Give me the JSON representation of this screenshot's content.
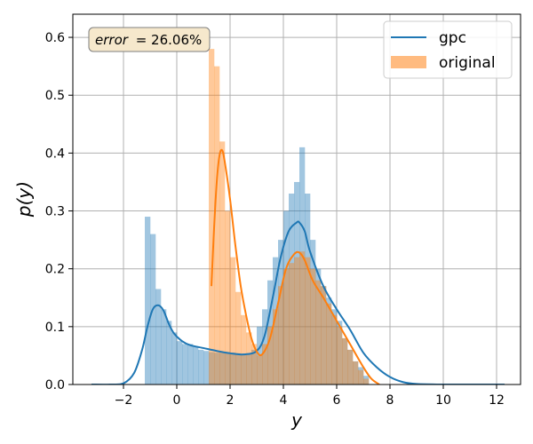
{
  "chart_data": {
    "type": "histogram",
    "xlabel": "y",
    "ylabel": "p(y)",
    "xlim": [
      -3.9,
      12.9
    ],
    "ylim": [
      0,
      0.64
    ],
    "xticks": [
      -2,
      0,
      2,
      4,
      6,
      8,
      10,
      12
    ],
    "xtick_labels": [
      "−2",
      "0",
      "2",
      "4",
      "6",
      "8",
      "10",
      "12"
    ],
    "yticks": [
      0.0,
      0.1,
      0.2,
      0.3,
      0.4,
      0.5,
      0.6
    ],
    "ytick_labels": [
      "0.0",
      "0.1",
      "0.2",
      "0.3",
      "0.4",
      "0.5",
      "0.6"
    ],
    "grid": true,
    "legend_position": "top-right",
    "annotation": {
      "prefix": "error",
      "value": "= 26.06%"
    },
    "series": [
      {
        "name": "gpc",
        "kind": "line+histogram",
        "color": "#1f77b4",
        "bin_width": 0.2,
        "hist_x": [
          -1.1,
          -0.9,
          -0.7,
          -0.5,
          -0.3,
          -0.1,
          0.1,
          0.3,
          0.5,
          0.7,
          0.9,
          1.1,
          1.3,
          1.5,
          1.7,
          1.9,
          2.1,
          2.3,
          2.5,
          2.7,
          2.9,
          3.1,
          3.3,
          3.5,
          3.7,
          3.9,
          4.1,
          4.3,
          4.5,
          4.7,
          4.9,
          5.1,
          5.3,
          5.5,
          5.7,
          5.9,
          6.1,
          6.3,
          6.5,
          6.7,
          6.9,
          7.1
        ],
        "hist_y": [
          0.29,
          0.26,
          0.165,
          0.13,
          0.11,
          0.09,
          0.075,
          0.07,
          0.07,
          0.065,
          0.06,
          0.058,
          0.056,
          0.055,
          0.055,
          0.056,
          0.055,
          0.054,
          0.053,
          0.052,
          0.06,
          0.1,
          0.13,
          0.18,
          0.22,
          0.25,
          0.3,
          0.33,
          0.35,
          0.41,
          0.33,
          0.25,
          0.2,
          0.17,
          0.15,
          0.13,
          0.11,
          0.08,
          0.06,
          0.04,
          0.03,
          0.015
        ],
        "curve_x": [
          -3.2,
          -2.5,
          -2.0,
          -1.6,
          -1.3,
          -1.1,
          -0.9,
          -0.7,
          -0.5,
          -0.3,
          -0.1,
          0.2,
          0.5,
          1.0,
          1.5,
          2.0,
          2.5,
          3.0,
          3.3,
          3.6,
          3.9,
          4.2,
          4.5,
          4.6,
          4.8,
          5.0,
          5.5,
          6.0,
          6.5,
          7.0,
          7.5,
          8.0,
          8.5,
          9.0,
          10.0,
          11.0,
          12.3
        ],
        "curve_y": [
          0.0,
          0.0,
          0.002,
          0.02,
          0.06,
          0.1,
          0.13,
          0.137,
          0.128,
          0.105,
          0.088,
          0.075,
          0.068,
          0.063,
          0.058,
          0.054,
          0.052,
          0.058,
          0.085,
          0.15,
          0.22,
          0.265,
          0.28,
          0.28,
          0.265,
          0.23,
          0.17,
          0.13,
          0.095,
          0.055,
          0.03,
          0.013,
          0.004,
          0.001,
          0.0,
          0.0,
          0.0
        ]
      },
      {
        "name": "original",
        "kind": "line+histogram",
        "color": "#ff7f0e",
        "hist_color": "#ffbb80",
        "bin_width": 0.2,
        "hist_x": [
          1.3,
          1.5,
          1.7,
          1.9,
          2.1,
          2.3,
          2.5,
          2.7,
          2.9,
          3.1,
          3.3,
          3.5,
          3.7,
          3.9,
          4.1,
          4.3,
          4.5,
          4.7,
          4.9,
          5.1,
          5.3,
          5.5,
          5.7,
          5.9,
          6.1,
          6.3,
          6.5,
          6.7,
          6.9,
          7.1
        ],
        "hist_y": [
          0.58,
          0.55,
          0.42,
          0.3,
          0.22,
          0.16,
          0.12,
          0.09,
          0.07,
          0.05,
          0.07,
          0.1,
          0.13,
          0.17,
          0.2,
          0.21,
          0.22,
          0.23,
          0.22,
          0.2,
          0.18,
          0.17,
          0.14,
          0.12,
          0.1,
          0.08,
          0.06,
          0.04,
          0.025,
          0.01
        ],
        "curve_x": [
          1.3,
          1.4,
          1.5,
          1.6,
          1.7,
          1.8,
          2.0,
          2.2,
          2.4,
          2.6,
          2.8,
          3.0,
          3.2,
          3.5,
          3.8,
          4.1,
          4.4,
          4.6,
          4.8,
          5.1,
          5.5,
          6.0,
          6.5,
          7.0,
          7.3,
          7.6
        ],
        "curve_y": [
          0.17,
          0.27,
          0.35,
          0.395,
          0.405,
          0.385,
          0.32,
          0.24,
          0.17,
          0.12,
          0.08,
          0.057,
          0.052,
          0.08,
          0.14,
          0.2,
          0.225,
          0.228,
          0.215,
          0.18,
          0.15,
          0.11,
          0.07,
          0.03,
          0.01,
          0.0
        ]
      }
    ]
  }
}
